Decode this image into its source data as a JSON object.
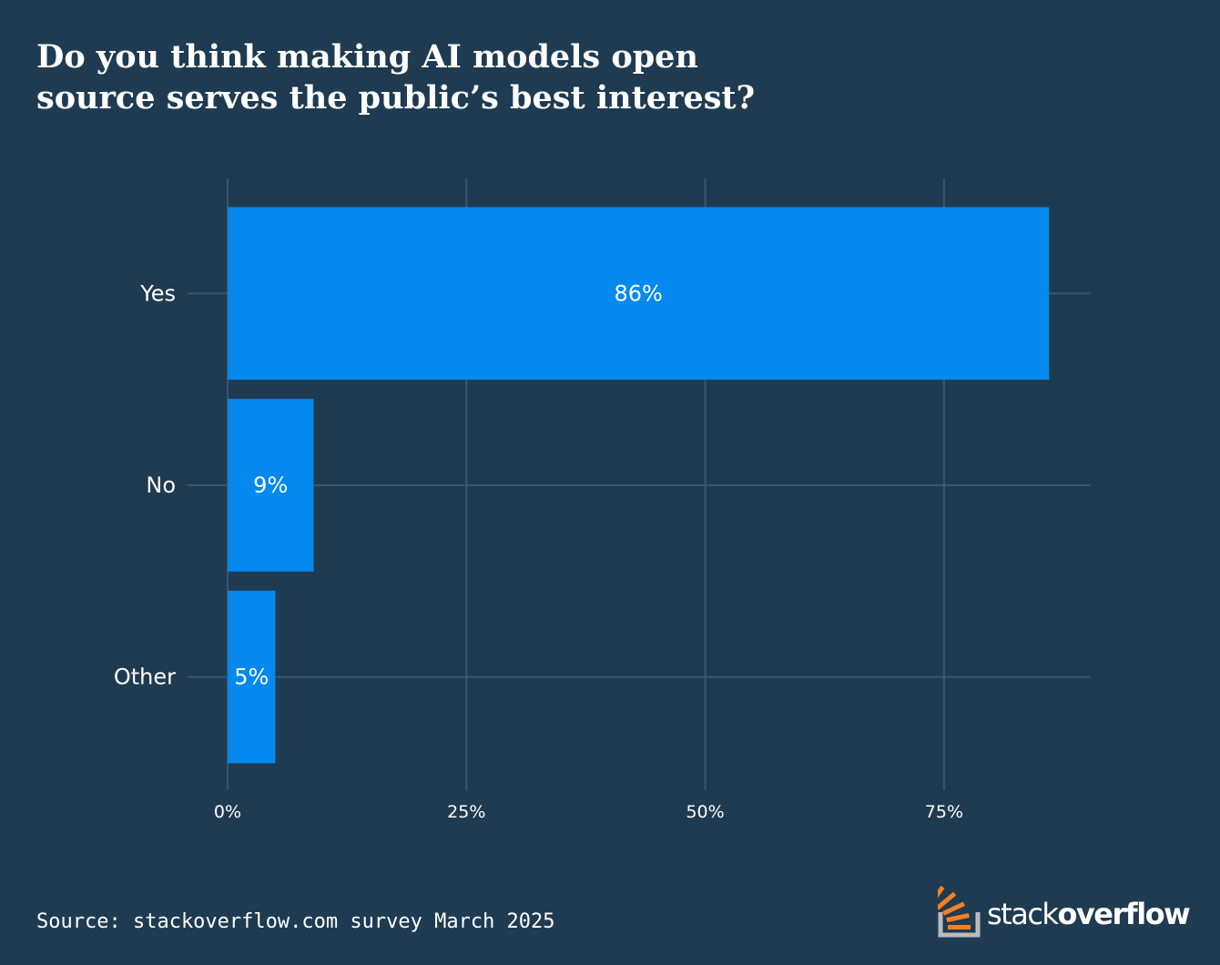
{
  "chart_data": {
    "type": "bar",
    "orientation": "horizontal",
    "title_lines": [
      "Do you think making AI models open",
      "source serves the public’s best interest?"
    ],
    "categories": [
      "Yes",
      "No",
      "Other"
    ],
    "values": [
      86,
      9,
      5
    ],
    "value_labels": [
      "86%",
      "9%",
      "5%"
    ],
    "x_ticks": [
      0,
      25,
      50,
      75
    ],
    "x_tick_labels": [
      "0%",
      "25%",
      "50%",
      "75%"
    ],
    "xlim": [
      0,
      90
    ],
    "grid": true,
    "bar_color": "#0589ee",
    "grid_color": "#3a5670"
  },
  "source": "Source: stackoverflow.com survey March 2025",
  "logo": {
    "text_light": "stack",
    "text_bold": "overflow",
    "icon": "stackoverflow-logo-icon",
    "icon_color_orange": "#f48024",
    "icon_color_gray": "#bcbbbb"
  }
}
